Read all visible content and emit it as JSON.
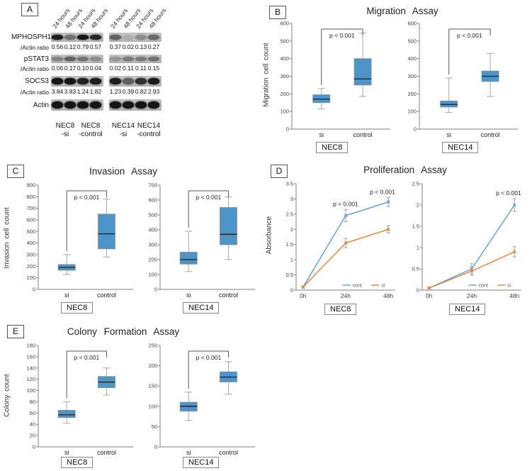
{
  "colors": {
    "box_fill": "#4d94c8",
    "box_stroke": "#8c8c8c",
    "median": "#1f1f1f",
    "whisker": "#a6a6a6",
    "axis": "#808080",
    "tick_text": "#404040",
    "bracket": "#555555",
    "cont_line": "#5b9bd5",
    "si_line": "#ed7d31",
    "error_bar": "#9e9e9e"
  },
  "panel_a": {
    "label": "A",
    "lane_headers": [
      "24 hours",
      "48 hours",
      "24 hours",
      "48 hours",
      "24 hours",
      "48 hours",
      "24 hours",
      "48 hours"
    ],
    "rows": [
      {
        "protein": "MPHOSPH1",
        "ratio_label": "/Actin ratio",
        "ratios": [
          "0.56",
          "0.12",
          "0.79",
          "0.57",
          "0.37",
          "0.02",
          "0.13",
          "0.27"
        ],
        "intensities": [
          0.9,
          0.45,
          0.95,
          0.85,
          0.55,
          0.12,
          0.3,
          0.5
        ],
        "band_h": 7
      },
      {
        "protein": "pSTAT3",
        "ratio_label": "/Actin ratio",
        "ratios": [
          "0.06",
          "0.17",
          "0.10",
          "0.04",
          "0.02",
          "0.11",
          "0.11",
          "0.15"
        ],
        "intensities": [
          0.35,
          0.55,
          0.45,
          0.3,
          0.25,
          0.4,
          0.4,
          0.45
        ],
        "band_h": 6
      },
      {
        "protein": "SOCS3",
        "ratio_label": "/Actin ratio",
        "ratios": [
          "3.84",
          "3.83",
          "1.24",
          "1.82",
          "1.23",
          "0.39",
          "0.82",
          "2.93"
        ],
        "intensities": [
          0.95,
          0.95,
          0.88,
          0.9,
          0.9,
          0.55,
          0.8,
          0.93
        ],
        "band_h": 9
      },
      {
        "protein": "Actin",
        "ratio_label": null,
        "ratios": null,
        "intensities": [
          0.95,
          0.95,
          0.95,
          0.95,
          0.95,
          0.95,
          0.95,
          0.95
        ],
        "band_h": 10
      }
    ],
    "group_labels": [
      {
        "line1": "NEC8",
        "line2": "-si"
      },
      {
        "line1": "NEC8",
        "line2": "-control"
      },
      {
        "line1": "NEC14",
        "line2": "-si"
      },
      {
        "line1": "NEC14",
        "line2": "-control"
      }
    ]
  },
  "panel_b": {
    "label": "B",
    "title": "Migration Assay",
    "ylabel": "Migration cell count",
    "cell_lines": [
      "NEC8",
      "NEC14"
    ]
  },
  "panel_c": {
    "label": "C",
    "title": "Invasion Assay",
    "ylabel": "Invasion cell count",
    "cell_lines": [
      "NEC8",
      "NEC14"
    ]
  },
  "panel_d": {
    "label": "D",
    "title": "Proliferation Assay",
    "ylabel": "Absorbance",
    "cell_lines": [
      "NEC8",
      "NEC14"
    ]
  },
  "panel_e": {
    "label": "E",
    "title": "Colony Formation Assay",
    "ylabel": "Colony count",
    "cell_lines": [
      "NEC8",
      "NEC14"
    ]
  },
  "chart_data": [
    {
      "id": "migration_nec8",
      "type": "box",
      "panel": "B",
      "title": "Migration Assay",
      "cell_line": "NEC8",
      "categories": [
        "si",
        "control"
      ],
      "ylim": [
        0,
        600
      ],
      "ytick_step": 100,
      "p_value": "p < 0.001",
      "boxes": [
        {
          "label": "si",
          "whisker_low": 115,
          "q1": 150,
          "median": 170,
          "q3": 195,
          "whisker_high": 230
        },
        {
          "label": "control",
          "whisker_low": 185,
          "q1": 250,
          "median": 285,
          "q3": 400,
          "whisker_high": 545
        }
      ]
    },
    {
      "id": "migration_nec14",
      "type": "box",
      "panel": "B",
      "title": "Migration Assay",
      "cell_line": "NEC14",
      "categories": [
        "si",
        "control"
      ],
      "ylim": [
        0,
        600
      ],
      "ytick_step": 100,
      "p_value": "p < 0.001",
      "boxes": [
        {
          "label": "si",
          "whisker_low": 95,
          "q1": 125,
          "median": 140,
          "q3": 160,
          "whisker_high": 290
        },
        {
          "label": "control",
          "whisker_low": 185,
          "q1": 270,
          "median": 300,
          "q3": 330,
          "whisker_high": 430
        }
      ]
    },
    {
      "id": "invasion_nec8",
      "type": "box",
      "panel": "C",
      "title": "Invasion Assay",
      "cell_line": "NEC8",
      "categories": [
        "si",
        "control"
      ],
      "ylim": [
        0,
        900
      ],
      "ytick_step": 100,
      "p_value": "p < 0.001",
      "boxes": [
        {
          "label": "si",
          "whisker_low": 130,
          "q1": 165,
          "median": 190,
          "q3": 215,
          "whisker_high": 300
        },
        {
          "label": "control",
          "whisker_low": 280,
          "q1": 350,
          "median": 480,
          "q3": 650,
          "whisker_high": 780
        }
      ]
    },
    {
      "id": "invasion_nec14",
      "type": "box",
      "panel": "C",
      "title": "Invasion Assay",
      "cell_line": "NEC14",
      "categories": [
        "si",
        "control"
      ],
      "ylim": [
        0,
        700
      ],
      "ytick_step": 100,
      "p_value": "p < 0.001",
      "boxes": [
        {
          "label": "si",
          "whisker_low": 120,
          "q1": 170,
          "median": 200,
          "q3": 250,
          "whisker_high": 390
        },
        {
          "label": "control",
          "whisker_low": 200,
          "q1": 300,
          "median": 370,
          "q3": 550,
          "whisker_high": 620
        }
      ]
    },
    {
      "id": "proliferation_nec8",
      "type": "line",
      "panel": "D",
      "title": "Proliferation Assay",
      "cell_line": "NEC8",
      "x": [
        "0h",
        "24h",
        "48h"
      ],
      "ylim": [
        0,
        3.5
      ],
      "ytick_step": 0.5,
      "series": [
        {
          "name": "cont",
          "values": [
            0.1,
            2.45,
            2.9
          ],
          "errors": [
            0.03,
            0.2,
            0.15
          ]
        },
        {
          "name": "si",
          "values": [
            0.1,
            1.55,
            2.0
          ],
          "errors": [
            0.03,
            0.15,
            0.12
          ]
        }
      ],
      "annotations": [
        {
          "x_index": 1,
          "text": "p < 0.001"
        },
        {
          "x_index": 2,
          "text": "p < 0.001"
        }
      ]
    },
    {
      "id": "proliferation_nec14",
      "type": "line",
      "panel": "D",
      "title": "Proliferation Assay",
      "cell_line": "NEC14",
      "x": [
        "0h",
        "24h",
        "48h"
      ],
      "ylim": [
        0,
        2.5
      ],
      "ytick_step": 0.5,
      "series": [
        {
          "name": "cont",
          "values": [
            0.05,
            0.5,
            2.0
          ],
          "errors": [
            0.02,
            0.12,
            0.15
          ]
        },
        {
          "name": "si",
          "values": [
            0.05,
            0.45,
            0.9
          ],
          "errors": [
            0.02,
            0.1,
            0.12
          ]
        }
      ],
      "annotations": [
        {
          "x_index": 2,
          "text": "p < 0.001"
        }
      ]
    },
    {
      "id": "colony_nec8",
      "type": "box",
      "panel": "E",
      "title": "Colony Formation Assay",
      "cell_line": "NEC8",
      "categories": [
        "si",
        "control"
      ],
      "ylim": [
        0,
        180
      ],
      "ytick_step": 20,
      "p_value": "p < 0.001",
      "boxes": [
        {
          "label": "si",
          "whisker_low": 42,
          "q1": 52,
          "median": 57,
          "q3": 65,
          "whisker_high": 80
        },
        {
          "label": "control",
          "whisker_low": 92,
          "q1": 105,
          "median": 115,
          "q3": 125,
          "whisker_high": 140
        }
      ]
    },
    {
      "id": "colony_nec14",
      "type": "box",
      "panel": "E",
      "title": "Colony Formation Assay",
      "cell_line": "NEC14",
      "categories": [
        "si",
        "control"
      ],
      "ylim": [
        0,
        250
      ],
      "ytick_step": 50,
      "p_value": "p < 0.001",
      "boxes": [
        {
          "label": "si",
          "whisker_low": 65,
          "q1": 88,
          "median": 100,
          "q3": 110,
          "whisker_high": 135
        },
        {
          "label": "control",
          "whisker_low": 130,
          "q1": 160,
          "median": 172,
          "q3": 185,
          "whisker_high": 210
        }
      ]
    }
  ]
}
